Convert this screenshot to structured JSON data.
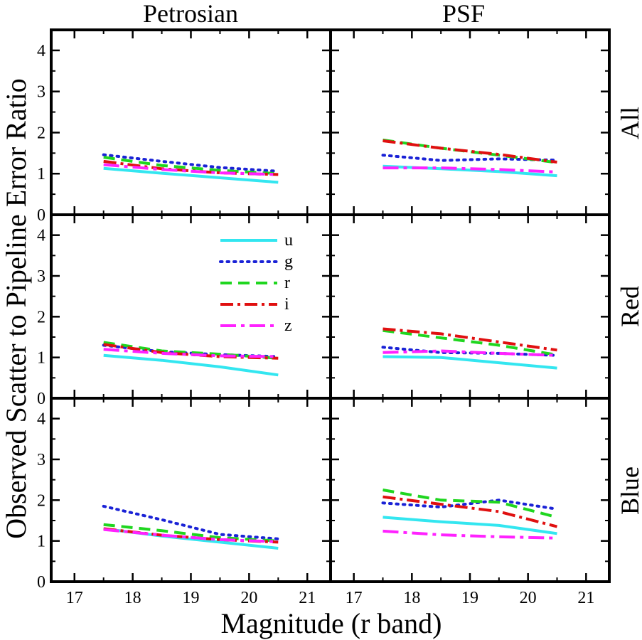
{
  "chart_data": {
    "type": "line",
    "ylabel": "Observed Scatter to Pipeline Error Ratio",
    "xlabel": "Magnitude (r band)",
    "columns": [
      "Petrosian",
      "PSF"
    ],
    "rows": [
      "All",
      "Red",
      "Blue"
    ],
    "xlim": [
      16.6,
      21.4
    ],
    "ylim": [
      0,
      4.5
    ],
    "x_ticks": [
      17,
      18,
      19,
      20,
      21
    ],
    "y_ticks": [
      0,
      1,
      2,
      3,
      4
    ],
    "x": [
      17.5,
      18.5,
      19.5,
      20.5
    ],
    "legend": {
      "panel": "Red-Petrosian",
      "entries": [
        {
          "label": "u",
          "band": "u"
        },
        {
          "label": "g",
          "band": "g"
        },
        {
          "label": "r",
          "band": "r"
        },
        {
          "label": "i",
          "band": "i"
        },
        {
          "label": "z",
          "band": "z"
        }
      ]
    },
    "series_styles": {
      "u": {
        "color": "#33e6f0",
        "dash": "solid"
      },
      "g": {
        "color": "#1a22d6",
        "dash": "dotted"
      },
      "r": {
        "color": "#1fd61f",
        "dash": "dashed"
      },
      "i": {
        "color": "#e01010",
        "dash": "dashdot"
      },
      "z": {
        "color": "#ff22ff",
        "dash": "dashdot-long"
      }
    },
    "panels": [
      {
        "row": "All",
        "column": "Petrosian",
        "series": [
          {
            "name": "u",
            "values": [
              1.13,
              1.01,
              0.9,
              0.79
            ]
          },
          {
            "name": "g",
            "values": [
              1.46,
              1.3,
              1.15,
              1.06
            ]
          },
          {
            "name": "r",
            "values": [
              1.4,
              1.2,
              1.08,
              1.0
            ]
          },
          {
            "name": "i",
            "values": [
              1.3,
              1.12,
              1.02,
              0.98
            ]
          },
          {
            "name": "z",
            "values": [
              1.22,
              1.1,
              1.02,
              0.98
            ]
          }
        ]
      },
      {
        "row": "All",
        "column": "PSF",
        "series": [
          {
            "name": "u",
            "values": [
              1.18,
              1.12,
              1.05,
              0.95
            ]
          },
          {
            "name": "g",
            "values": [
              1.45,
              1.32,
              1.36,
              1.33
            ]
          },
          {
            "name": "r",
            "values": [
              1.82,
              1.62,
              1.45,
              1.27
            ]
          },
          {
            "name": "i",
            "values": [
              1.8,
              1.62,
              1.47,
              1.28
            ]
          },
          {
            "name": "z",
            "values": [
              1.14,
              1.14,
              1.1,
              1.04
            ]
          }
        ]
      },
      {
        "row": "Red",
        "column": "Petrosian",
        "series": [
          {
            "name": "u",
            "values": [
              1.05,
              0.93,
              0.77,
              0.57
            ]
          },
          {
            "name": "g",
            "values": [
              1.3,
              1.14,
              1.07,
              1.02
            ]
          },
          {
            "name": "r",
            "values": [
              1.37,
              1.16,
              1.08,
              0.98
            ]
          },
          {
            "name": "i",
            "values": [
              1.32,
              1.12,
              1.02,
              0.98
            ]
          },
          {
            "name": "z",
            "values": [
              1.2,
              1.1,
              1.04,
              1.02
            ]
          }
        ]
      },
      {
        "row": "Red",
        "column": "PSF",
        "series": [
          {
            "name": "u",
            "values": [
              1.02,
              1.0,
              0.87,
              0.74
            ]
          },
          {
            "name": "g",
            "values": [
              1.25,
              1.12,
              1.1,
              1.05
            ]
          },
          {
            "name": "r",
            "values": [
              1.66,
              1.48,
              1.3,
              1.06
            ]
          },
          {
            "name": "i",
            "values": [
              1.7,
              1.58,
              1.38,
              1.18
            ]
          },
          {
            "name": "z",
            "values": [
              1.12,
              1.16,
              1.1,
              1.05
            ]
          }
        ]
      },
      {
        "row": "Blue",
        "column": "Petrosian",
        "series": [
          {
            "name": "u",
            "values": [
              1.3,
              1.12,
              0.97,
              0.82
            ]
          },
          {
            "name": "g",
            "values": [
              1.85,
              1.52,
              1.16,
              1.05
            ]
          },
          {
            "name": "r",
            "values": [
              1.4,
              1.25,
              1.08,
              1.0
            ]
          },
          {
            "name": "i",
            "values": [
              1.3,
              1.14,
              1.03,
              0.97
            ]
          },
          {
            "name": "z",
            "values": [
              1.28,
              1.14,
              1.03,
              0.98
            ]
          }
        ]
      },
      {
        "row": "Blue",
        "column": "PSF",
        "series": [
          {
            "name": "u",
            "values": [
              1.58,
              1.47,
              1.38,
              1.18
            ]
          },
          {
            "name": "g",
            "values": [
              1.93,
              1.83,
              2.0,
              1.78
            ]
          },
          {
            "name": "r",
            "values": [
              2.25,
              2.0,
              1.95,
              1.58
            ]
          },
          {
            "name": "i",
            "values": [
              2.08,
              1.9,
              1.72,
              1.35
            ]
          },
          {
            "name": "z",
            "values": [
              1.24,
              1.15,
              1.1,
              1.07
            ]
          }
        ]
      }
    ]
  }
}
